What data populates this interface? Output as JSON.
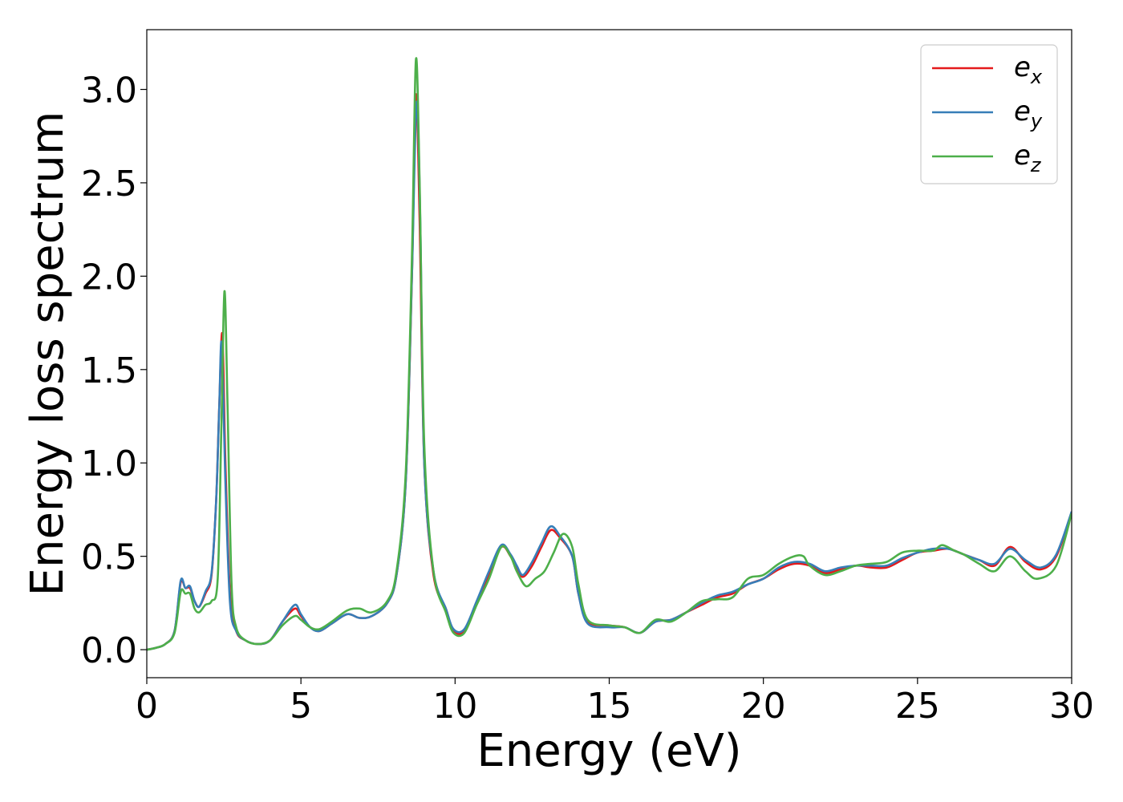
{
  "chart_data": {
    "type": "line",
    "title": "",
    "xlabel": "Energy (eV)",
    "ylabel": "Energy loss spectrum",
    "xlim": [
      0,
      30
    ],
    "ylim": [
      -0.15,
      3.32
    ],
    "xticks": [
      0,
      5,
      10,
      15,
      20,
      25,
      30
    ],
    "xtick_labels": [
      "0",
      "5",
      "10",
      "15",
      "20",
      "25",
      "30"
    ],
    "yticks": [
      0.0,
      0.5,
      1.0,
      1.5,
      2.0,
      2.5,
      3.0
    ],
    "ytick_labels": [
      "0.0",
      "0.5",
      "1.0",
      "1.5",
      "2.0",
      "2.5",
      "3.0"
    ],
    "grid": false,
    "legend_position": "top-right",
    "series": [
      {
        "name": "e_x",
        "label_base": "e",
        "label_sub": "x",
        "color": "#e41a1c",
        "points": [
          [
            0,
            0.0
          ],
          [
            0.3,
            0.01
          ],
          [
            0.6,
            0.03
          ],
          [
            0.9,
            0.1
          ],
          [
            1.1,
            0.36
          ],
          [
            1.25,
            0.33
          ],
          [
            1.4,
            0.33
          ],
          [
            1.55,
            0.26
          ],
          [
            1.7,
            0.23
          ],
          [
            1.9,
            0.3
          ],
          [
            2.1,
            0.4
          ],
          [
            2.25,
            0.8
          ],
          [
            2.35,
            1.3
          ],
          [
            2.45,
            1.69
          ],
          [
            2.55,
            1.0
          ],
          [
            2.7,
            0.3
          ],
          [
            2.9,
            0.1
          ],
          [
            3.2,
            0.05
          ],
          [
            3.6,
            0.03
          ],
          [
            4.0,
            0.05
          ],
          [
            4.4,
            0.15
          ],
          [
            4.8,
            0.22
          ],
          [
            5.0,
            0.18
          ],
          [
            5.3,
            0.12
          ],
          [
            5.6,
            0.1
          ],
          [
            6.0,
            0.14
          ],
          [
            6.5,
            0.19
          ],
          [
            6.9,
            0.17
          ],
          [
            7.3,
            0.18
          ],
          [
            7.8,
            0.25
          ],
          [
            8.1,
            0.4
          ],
          [
            8.4,
            0.9
          ],
          [
            8.6,
            2.0
          ],
          [
            8.73,
            2.97
          ],
          [
            8.85,
            2.3
          ],
          [
            9.0,
            1.0
          ],
          [
            9.3,
            0.4
          ],
          [
            9.7,
            0.22
          ],
          [
            9.95,
            0.1
          ],
          [
            10.3,
            0.1
          ],
          [
            10.7,
            0.25
          ],
          [
            11.1,
            0.4
          ],
          [
            11.5,
            0.55
          ],
          [
            11.8,
            0.5
          ],
          [
            12.0,
            0.44
          ],
          [
            12.2,
            0.39
          ],
          [
            12.5,
            0.45
          ],
          [
            12.8,
            0.55
          ],
          [
            13.1,
            0.64
          ],
          [
            13.4,
            0.6
          ],
          [
            13.8,
            0.5
          ],
          [
            14.0,
            0.3
          ],
          [
            14.3,
            0.15
          ],
          [
            15.0,
            0.13
          ],
          [
            15.5,
            0.12
          ],
          [
            16.0,
            0.09
          ],
          [
            16.5,
            0.15
          ],
          [
            17.0,
            0.16
          ],
          [
            17.5,
            0.2
          ],
          [
            18.0,
            0.24
          ],
          [
            18.5,
            0.28
          ],
          [
            19.0,
            0.3
          ],
          [
            19.5,
            0.35
          ],
          [
            20.0,
            0.38
          ],
          [
            20.5,
            0.43
          ],
          [
            21.0,
            0.46
          ],
          [
            21.5,
            0.45
          ],
          [
            22.0,
            0.41
          ],
          [
            22.5,
            0.43
          ],
          [
            23.0,
            0.45
          ],
          [
            23.5,
            0.44
          ],
          [
            24.0,
            0.44
          ],
          [
            24.5,
            0.48
          ],
          [
            25.0,
            0.52
          ],
          [
            25.5,
            0.53
          ],
          [
            26.0,
            0.54
          ],
          [
            26.5,
            0.51
          ],
          [
            27.0,
            0.48
          ],
          [
            27.5,
            0.45
          ],
          [
            28.0,
            0.55
          ],
          [
            28.5,
            0.47
          ],
          [
            29.0,
            0.43
          ],
          [
            29.5,
            0.5
          ],
          [
            30.0,
            0.73
          ]
        ]
      },
      {
        "name": "e_y",
        "label_base": "e",
        "label_sub": "y",
        "color": "#377eb8",
        "points": [
          [
            0,
            0.0
          ],
          [
            0.3,
            0.01
          ],
          [
            0.6,
            0.03
          ],
          [
            0.9,
            0.1
          ],
          [
            1.1,
            0.37
          ],
          [
            1.25,
            0.33
          ],
          [
            1.4,
            0.34
          ],
          [
            1.55,
            0.26
          ],
          [
            1.7,
            0.23
          ],
          [
            1.9,
            0.31
          ],
          [
            2.1,
            0.41
          ],
          [
            2.25,
            0.8
          ],
          [
            2.35,
            1.3
          ],
          [
            2.43,
            1.64
          ],
          [
            2.55,
            0.9
          ],
          [
            2.7,
            0.25
          ],
          [
            2.9,
            0.1
          ],
          [
            3.2,
            0.05
          ],
          [
            3.6,
            0.03
          ],
          [
            4.0,
            0.05
          ],
          [
            4.4,
            0.15
          ],
          [
            4.8,
            0.24
          ],
          [
            5.0,
            0.19
          ],
          [
            5.3,
            0.12
          ],
          [
            5.6,
            0.1
          ],
          [
            6.0,
            0.14
          ],
          [
            6.5,
            0.19
          ],
          [
            6.9,
            0.17
          ],
          [
            7.3,
            0.18
          ],
          [
            7.8,
            0.25
          ],
          [
            8.1,
            0.4
          ],
          [
            8.4,
            0.9
          ],
          [
            8.6,
            2.0
          ],
          [
            8.75,
            2.93
          ],
          [
            8.87,
            2.3
          ],
          [
            9.0,
            1.0
          ],
          [
            9.3,
            0.42
          ],
          [
            9.7,
            0.22
          ],
          [
            9.95,
            0.11
          ],
          [
            10.3,
            0.11
          ],
          [
            10.7,
            0.26
          ],
          [
            11.1,
            0.42
          ],
          [
            11.5,
            0.56
          ],
          [
            11.8,
            0.51
          ],
          [
            12.0,
            0.45
          ],
          [
            12.2,
            0.4
          ],
          [
            12.5,
            0.47
          ],
          [
            12.8,
            0.57
          ],
          [
            13.1,
            0.66
          ],
          [
            13.4,
            0.61
          ],
          [
            13.8,
            0.5
          ],
          [
            14.0,
            0.3
          ],
          [
            14.3,
            0.14
          ],
          [
            15.0,
            0.12
          ],
          [
            15.5,
            0.12
          ],
          [
            16.0,
            0.09
          ],
          [
            16.5,
            0.15
          ],
          [
            17.0,
            0.16
          ],
          [
            17.5,
            0.2
          ],
          [
            18.0,
            0.25
          ],
          [
            18.5,
            0.29
          ],
          [
            19.0,
            0.31
          ],
          [
            19.5,
            0.35
          ],
          [
            20.0,
            0.38
          ],
          [
            20.5,
            0.44
          ],
          [
            21.0,
            0.47
          ],
          [
            21.5,
            0.46
          ],
          [
            22.0,
            0.42
          ],
          [
            22.5,
            0.44
          ],
          [
            23.0,
            0.45
          ],
          [
            23.5,
            0.45
          ],
          [
            24.0,
            0.45
          ],
          [
            24.5,
            0.49
          ],
          [
            25.0,
            0.52
          ],
          [
            25.5,
            0.54
          ],
          [
            26.0,
            0.54
          ],
          [
            26.5,
            0.51
          ],
          [
            27.0,
            0.48
          ],
          [
            27.5,
            0.46
          ],
          [
            28.0,
            0.54
          ],
          [
            28.5,
            0.48
          ],
          [
            29.0,
            0.44
          ],
          [
            29.5,
            0.51
          ],
          [
            30.0,
            0.74
          ]
        ]
      },
      {
        "name": "e_z",
        "label_base": "e",
        "label_sub": "z",
        "color": "#4daf4a",
        "points": [
          [
            0,
            0.0
          ],
          [
            0.3,
            0.01
          ],
          [
            0.6,
            0.03
          ],
          [
            0.9,
            0.09
          ],
          [
            1.1,
            0.31
          ],
          [
            1.25,
            0.3
          ],
          [
            1.4,
            0.3
          ],
          [
            1.55,
            0.22
          ],
          [
            1.7,
            0.2
          ],
          [
            1.9,
            0.24
          ],
          [
            2.1,
            0.26
          ],
          [
            2.3,
            0.38
          ],
          [
            2.42,
            1.2
          ],
          [
            2.52,
            1.92
          ],
          [
            2.62,
            1.3
          ],
          [
            2.75,
            0.35
          ],
          [
            2.9,
            0.12
          ],
          [
            3.2,
            0.05
          ],
          [
            3.6,
            0.03
          ],
          [
            4.0,
            0.05
          ],
          [
            4.4,
            0.13
          ],
          [
            4.8,
            0.18
          ],
          [
            5.0,
            0.16
          ],
          [
            5.3,
            0.12
          ],
          [
            5.6,
            0.11
          ],
          [
            6.0,
            0.15
          ],
          [
            6.5,
            0.21
          ],
          [
            6.9,
            0.22
          ],
          [
            7.3,
            0.2
          ],
          [
            7.8,
            0.26
          ],
          [
            8.1,
            0.42
          ],
          [
            8.4,
            0.95
          ],
          [
            8.6,
            2.1
          ],
          [
            8.73,
            3.16
          ],
          [
            8.85,
            2.5
          ],
          [
            9.0,
            1.1
          ],
          [
            9.3,
            0.42
          ],
          [
            9.7,
            0.2
          ],
          [
            9.95,
            0.09
          ],
          [
            10.3,
            0.09
          ],
          [
            10.7,
            0.24
          ],
          [
            11.1,
            0.38
          ],
          [
            11.5,
            0.55
          ],
          [
            11.8,
            0.5
          ],
          [
            12.0,
            0.42
          ],
          [
            12.3,
            0.34
          ],
          [
            12.6,
            0.38
          ],
          [
            12.9,
            0.42
          ],
          [
            13.2,
            0.52
          ],
          [
            13.5,
            0.62
          ],
          [
            13.8,
            0.55
          ],
          [
            14.0,
            0.35
          ],
          [
            14.3,
            0.16
          ],
          [
            15.0,
            0.13
          ],
          [
            15.5,
            0.12
          ],
          [
            16.0,
            0.09
          ],
          [
            16.5,
            0.16
          ],
          [
            17.0,
            0.15
          ],
          [
            17.5,
            0.2
          ],
          [
            18.0,
            0.26
          ],
          [
            18.5,
            0.27
          ],
          [
            19.0,
            0.28
          ],
          [
            19.5,
            0.38
          ],
          [
            20.0,
            0.4
          ],
          [
            20.5,
            0.46
          ],
          [
            21.0,
            0.5
          ],
          [
            21.3,
            0.5
          ],
          [
            21.5,
            0.45
          ],
          [
            22.0,
            0.4
          ],
          [
            22.5,
            0.42
          ],
          [
            23.0,
            0.45
          ],
          [
            23.5,
            0.46
          ],
          [
            24.0,
            0.47
          ],
          [
            24.5,
            0.52
          ],
          [
            25.0,
            0.53
          ],
          [
            25.5,
            0.53
          ],
          [
            25.8,
            0.56
          ],
          [
            26.2,
            0.53
          ],
          [
            26.5,
            0.51
          ],
          [
            27.0,
            0.46
          ],
          [
            27.5,
            0.42
          ],
          [
            28.0,
            0.5
          ],
          [
            28.5,
            0.42
          ],
          [
            28.9,
            0.38
          ],
          [
            29.5,
            0.45
          ],
          [
            30.0,
            0.73
          ]
        ]
      }
    ]
  }
}
